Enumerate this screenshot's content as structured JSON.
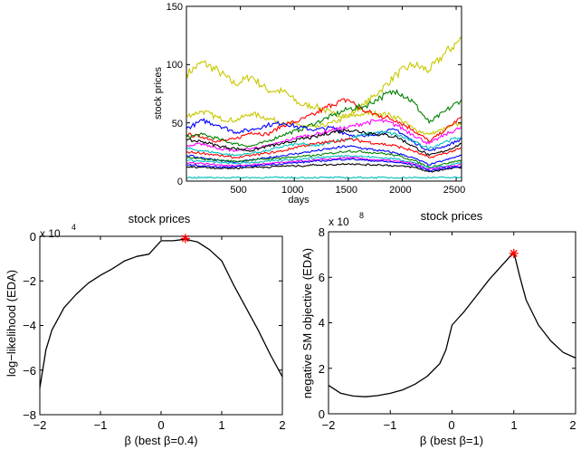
{
  "chart_data": [
    {
      "type": "line",
      "title": "",
      "xlabel": "days",
      "ylabel": "stock prices",
      "xlim": [
        0,
        2550
      ],
      "ylim": [
        0,
        150
      ],
      "xticks": [
        "500",
        "1000",
        "1500",
        "2000",
        "2500"
      ],
      "yticks": [
        "0",
        "50",
        "100",
        "150"
      ],
      "x": [
        0,
        150,
        300,
        450,
        600,
        750,
        900,
        1050,
        1200,
        1350,
        1500,
        1650,
        1800,
        1950,
        2100,
        2250,
        2400,
        2550
      ],
      "series": [
        {
          "color": "#c8c800",
          "values": [
            92,
            102,
            94,
            83,
            90,
            78,
            77,
            66,
            64,
            58,
            56,
            66,
            78,
            92,
            100,
            95,
            110,
            122
          ]
        },
        {
          "color": "#c8c800",
          "values": [
            56,
            60,
            54,
            52,
            58,
            54,
            50,
            48,
            46,
            50,
            55,
            58,
            58,
            55,
            45,
            40,
            45,
            50
          ]
        },
        {
          "color": "#ff0000",
          "values": [
            40,
            38,
            34,
            36,
            42,
            40,
            48,
            52,
            58,
            66,
            70,
            60,
            56,
            52,
            44,
            34,
            44,
            55
          ]
        },
        {
          "color": "#008000",
          "values": [
            38,
            40,
            36,
            32,
            30,
            34,
            40,
            44,
            50,
            56,
            62,
            64,
            72,
            78,
            68,
            50,
            60,
            70
          ]
        },
        {
          "color": "#0000ff",
          "values": [
            45,
            52,
            48,
            42,
            44,
            48,
            50,
            46,
            44,
            46,
            40,
            38,
            42,
            44,
            34,
            26,
            30,
            36
          ]
        },
        {
          "color": "#ff00ff",
          "values": [
            30,
            32,
            28,
            26,
            28,
            30,
            34,
            38,
            40,
            44,
            46,
            50,
            52,
            48,
            40,
            32,
            40,
            46
          ]
        },
        {
          "color": "#00bfbf",
          "values": [
            28,
            26,
            24,
            22,
            24,
            26,
            30,
            32,
            30,
            34,
            36,
            40,
            42,
            40,
            34,
            28,
            34,
            38
          ]
        },
        {
          "color": "#000000",
          "values": [
            35,
            34,
            30,
            28,
            26,
            30,
            32,
            36,
            38,
            42,
            44,
            42,
            40,
            38,
            30,
            22,
            26,
            32
          ]
        },
        {
          "color": "#0000ff",
          "values": [
            22,
            20,
            18,
            16,
            18,
            20,
            22,
            24,
            26,
            28,
            30,
            28,
            26,
            24,
            20,
            14,
            18,
            22
          ]
        },
        {
          "color": "#ff0000",
          "values": [
            25,
            24,
            22,
            20,
            22,
            24,
            26,
            30,
            32,
            34,
            36,
            34,
            32,
            30,
            26,
            20,
            24,
            28
          ]
        },
        {
          "color": "#008000",
          "values": [
            20,
            19,
            18,
            17,
            18,
            19,
            20,
            21,
            22,
            24,
            26,
            25,
            24,
            22,
            18,
            12,
            15,
            18
          ]
        },
        {
          "color": "#00bfbf",
          "values": [
            18,
            17,
            16,
            15,
            16,
            17,
            18,
            19,
            20,
            21,
            22,
            21,
            20,
            19,
            16,
            11,
            13,
            16
          ]
        },
        {
          "color": "#ff00ff",
          "values": [
            16,
            15,
            14,
            13,
            14,
            15,
            16,
            17,
            18,
            19,
            20,
            19,
            18,
            17,
            15,
            10,
            12,
            14
          ]
        },
        {
          "color": "#000000",
          "values": [
            12,
            12,
            11,
            11,
            12,
            12,
            13,
            13,
            14,
            14,
            15,
            14,
            14,
            13,
            12,
            8,
            10,
            12
          ]
        },
        {
          "color": "#0000ff",
          "values": [
            14,
            13,
            12,
            12,
            13,
            14,
            15,
            16,
            17,
            18,
            19,
            18,
            17,
            16,
            14,
            9,
            11,
            13
          ]
        },
        {
          "color": "#00bfbf",
          "values": [
            3,
            3,
            3,
            3,
            3,
            3,
            3,
            3,
            3,
            3,
            3,
            3,
            3,
            3,
            3,
            3,
            3,
            3
          ]
        }
      ]
    },
    {
      "type": "line",
      "title": "stock prices",
      "xlabel": "β (best β=0.4)",
      "ylabel": "log−likelihood (EDA)",
      "y_multiplier": "x 10",
      "y_exponent": "4",
      "xlim": [
        -2,
        2
      ],
      "ylim": [
        -8,
        0
      ],
      "xticks": [
        "−2",
        "−1",
        "0",
        "1",
        "2"
      ],
      "yticks": [
        "0",
        "−2",
        "−4",
        "−6",
        "−8"
      ],
      "x": [
        -2.0,
        -1.9,
        -1.8,
        -1.6,
        -1.4,
        -1.2,
        -1.0,
        -0.8,
        -0.6,
        -0.4,
        -0.2,
        0.0,
        0.2,
        0.4,
        0.6,
        0.8,
        1.0,
        1.2,
        1.4,
        1.6,
        1.8,
        2.0
      ],
      "values": [
        -6.8,
        -5.1,
        -4.2,
        -3.2,
        -2.6,
        -2.1,
        -1.75,
        -1.45,
        -1.1,
        -0.9,
        -0.8,
        -0.2,
        -0.2,
        -0.13,
        -0.25,
        -0.6,
        -1.1,
        -2.2,
        -3.2,
        -4.2,
        -5.3,
        -6.3
      ],
      "best": {
        "x": 0.4,
        "y": -0.1,
        "marker": "*",
        "color": "#ff0000"
      }
    },
    {
      "type": "line",
      "title": "stock prices",
      "xlabel": "β (best β=1)",
      "ylabel": "negative SM objective (EDA)",
      "y_multiplier": "x 10",
      "y_exponent": "8",
      "xlim": [
        -2,
        2
      ],
      "ylim": [
        0,
        8
      ],
      "xticks": [
        "−2",
        "−1",
        "0",
        "1",
        "2"
      ],
      "yticks": [
        "0",
        "2",
        "4",
        "6",
        "8"
      ],
      "x": [
        -2.0,
        -1.8,
        -1.6,
        -1.4,
        -1.2,
        -1.0,
        -0.8,
        -0.6,
        -0.4,
        -0.2,
        -0.1,
        0.0,
        0.2,
        0.4,
        0.6,
        0.8,
        1.0,
        1.1,
        1.2,
        1.4,
        1.6,
        1.8,
        2.0
      ],
      "values": [
        1.25,
        0.9,
        0.78,
        0.75,
        0.8,
        0.9,
        1.05,
        1.3,
        1.65,
        2.2,
        2.8,
        3.9,
        4.5,
        5.2,
        5.9,
        6.5,
        7.1,
        6.0,
        5.0,
        3.9,
        3.2,
        2.7,
        2.45
      ],
      "best": {
        "x": 1.0,
        "y": 7.05,
        "marker": "*",
        "color": "#ff0000"
      }
    }
  ]
}
